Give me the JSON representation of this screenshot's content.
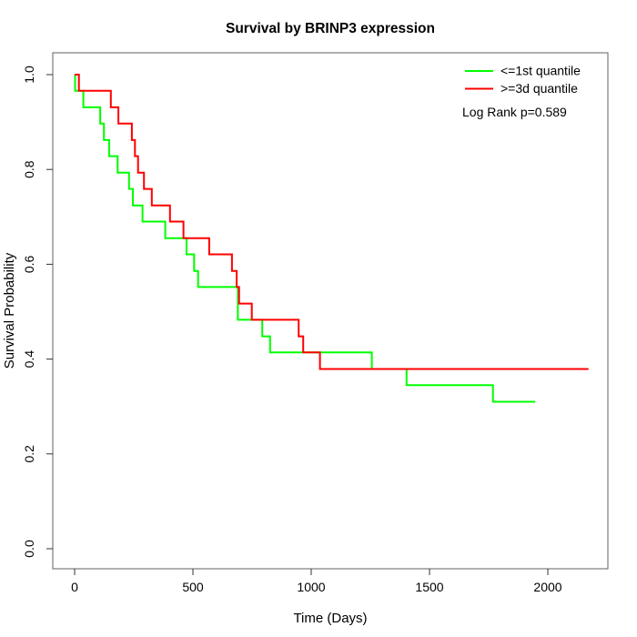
{
  "chart_data": {
    "type": "line",
    "subtype": "kaplan-meier-step",
    "title": "Survival by BRINP3 expression",
    "xlabel": "Time (Days)",
    "ylabel": "Survival Probability",
    "xlim": [
      0,
      2200
    ],
    "ylim": [
      0.0,
      1.0
    ],
    "x_ticks": [
      0,
      500,
      1000,
      1500,
      2000
    ],
    "y_ticks": [
      "0.0",
      "0.2",
      "0.4",
      "0.6",
      "0.8",
      "1.0"
    ],
    "grid": false,
    "legend_position": "top-right",
    "annotation": "Log Rank p=0.589",
    "legend": [
      {
        "label": "<=1st quantile",
        "color": "#00ff00"
      },
      {
        "label": ">=3d quantile",
        "color": "#ff0000"
      }
    ],
    "series": [
      {
        "name": "<=1st quantile",
        "color": "#00ff00",
        "points": [
          [
            0,
            1.0
          ],
          [
            2,
            0.966
          ],
          [
            37,
            0.931
          ],
          [
            108,
            0.897
          ],
          [
            124,
            0.862
          ],
          [
            146,
            0.828
          ],
          [
            182,
            0.793
          ],
          [
            230,
            0.759
          ],
          [
            246,
            0.724
          ],
          [
            287,
            0.69
          ],
          [
            383,
            0.655
          ],
          [
            473,
            0.621
          ],
          [
            505,
            0.586
          ],
          [
            522,
            0.552
          ],
          [
            690,
            0.483
          ],
          [
            793,
            0.448
          ],
          [
            826,
            0.414
          ],
          [
            1256,
            0.379
          ],
          [
            1403,
            0.345
          ],
          [
            1768,
            0.31
          ]
        ],
        "end_time": 1947
      },
      {
        "name": ">=3d quantile",
        "color": "#ff0000",
        "points": [
          [
            0,
            1.0
          ],
          [
            18,
            0.966
          ],
          [
            153,
            0.931
          ],
          [
            185,
            0.897
          ],
          [
            242,
            0.862
          ],
          [
            255,
            0.828
          ],
          [
            268,
            0.793
          ],
          [
            293,
            0.759
          ],
          [
            326,
            0.724
          ],
          [
            403,
            0.69
          ],
          [
            460,
            0.655
          ],
          [
            569,
            0.621
          ],
          [
            665,
            0.586
          ],
          [
            685,
            0.552
          ],
          [
            695,
            0.517
          ],
          [
            749,
            0.483
          ],
          [
            947,
            0.448
          ],
          [
            966,
            0.414
          ],
          [
            1037,
            0.379
          ]
        ],
        "end_time": 2172
      }
    ]
  }
}
